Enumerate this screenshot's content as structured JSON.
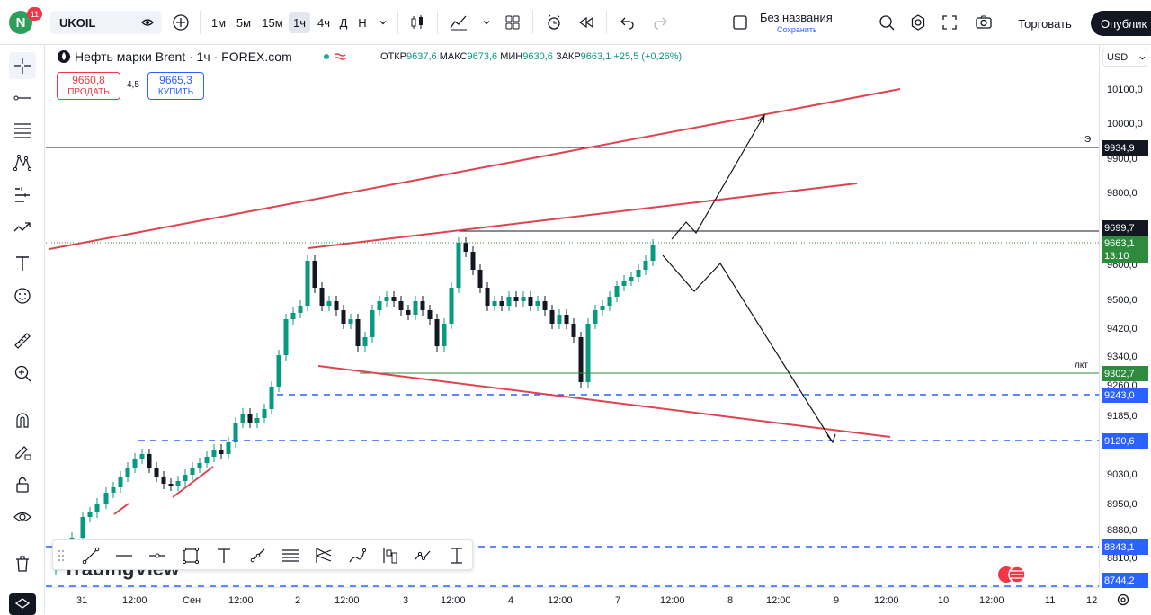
{
  "topbar": {
    "logo_letter": "N",
    "notifications": "11",
    "symbol": "UKOIL",
    "timeframes": [
      "1м",
      "5м",
      "15м",
      "1ч",
      "4ч",
      "Д",
      "Н"
    ],
    "active_timeframe": "1ч",
    "layout_name": "Без названия",
    "layout_status": "Сохранить",
    "trade_label": "Торговать",
    "publish_label": "Опублик"
  },
  "legend": {
    "instrument": "Нефть марки Brent · 1ч · FOREX.com",
    "open_label": "ОТКР",
    "open": "9637,6",
    "high_label": "МАКС",
    "high": "9673,6",
    "low_label": "МИН",
    "low": "9630,6",
    "close_label": "ЗАКР",
    "close": "9663,1",
    "change": "+25,5 (+0,26%)"
  },
  "order": {
    "sell_price": "9660,8",
    "sell_label": "ПРОДАТЬ",
    "spread": "4,5",
    "buy_price": "9665,3",
    "buy_label": "КУПИТЬ"
  },
  "price_axis": {
    "currency": "USD",
    "ticks": [
      "10100,0",
      "10000,0",
      "9900,0",
      "9800,0",
      "9600,0",
      "9500,0",
      "9420,0",
      "9340,0",
      "9260,0",
      "9185,0",
      "9030,0",
      "8950,0",
      "8880,0",
      "8810,0"
    ],
    "labels": [
      {
        "value": "9934,9",
        "color": "#131722"
      },
      {
        "value": "9699,7",
        "color": "#131722"
      },
      {
        "value": "9663,1",
        "color": "#2e8b3e"
      },
      {
        "value": "13:10",
        "color": "#2e8b3e"
      },
      {
        "value": "9302,7",
        "color": "#2e8b3e"
      },
      {
        "value": "9243,0",
        "color": "#2962ff"
      },
      {
        "value": "9120,6",
        "color": "#2962ff"
      },
      {
        "value": "8843,1",
        "color": "#2962ff"
      },
      {
        "value": "8744,2",
        "color": "#2962ff"
      }
    ],
    "tag_e": "Э",
    "tag_lkt": "лкт"
  },
  "time_axis": {
    "ticks": [
      "31",
      "12:00",
      "Сен",
      "12:00",
      "2",
      "12:00",
      "3",
      "12:00",
      "4",
      "12:00",
      "7",
      "12:00",
      "8",
      "12:00",
      "9",
      "12:00",
      "10",
      "12:00",
      "11",
      "12"
    ]
  },
  "watermark": "TradingView",
  "colors": {
    "up": "#089981",
    "down": "#131722",
    "trend": "#e0434f",
    "level_blue": "#2962ff",
    "accent_green": "#2e8b3e"
  }
}
